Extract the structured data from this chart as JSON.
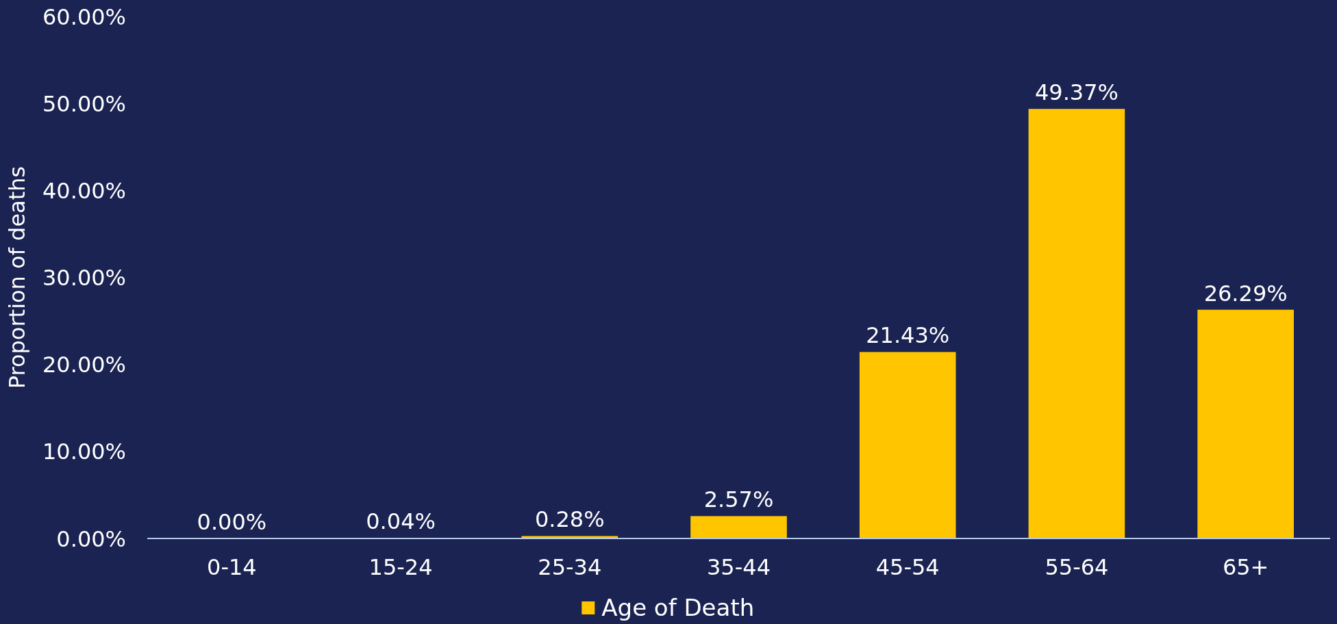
{
  "chart_data": {
    "type": "bar",
    "ylabel": "Proportion of deaths",
    "categories": [
      "0-14",
      "15-24",
      "25-34",
      "35-44",
      "45-54",
      "55-64",
      "65+"
    ],
    "series": [
      {
        "name": "Age of Death",
        "color": "#ffc600",
        "values": [
          0,
          0.04,
          0.28,
          2.57,
          21.43,
          49.37,
          26.29
        ],
        "value_labels": [
          "0.00%",
          "0.04%",
          "0.28%",
          "2.57%",
          "21.43%",
          "49.37%",
          "26.29%"
        ]
      }
    ],
    "ylim": [
      0,
      60
    ],
    "yticks": [
      {
        "value": 0,
        "label": "0.00%"
      },
      {
        "value": 10,
        "label": "10.00%"
      },
      {
        "value": 20,
        "label": "20.00%"
      },
      {
        "value": 30,
        "label": "30.00%"
      },
      {
        "value": 40,
        "label": "40.00%"
      },
      {
        "value": 50,
        "label": "50.00%"
      },
      {
        "value": 60,
        "label": "60.00%"
      }
    ],
    "grid": false,
    "legend": "bottom"
  }
}
